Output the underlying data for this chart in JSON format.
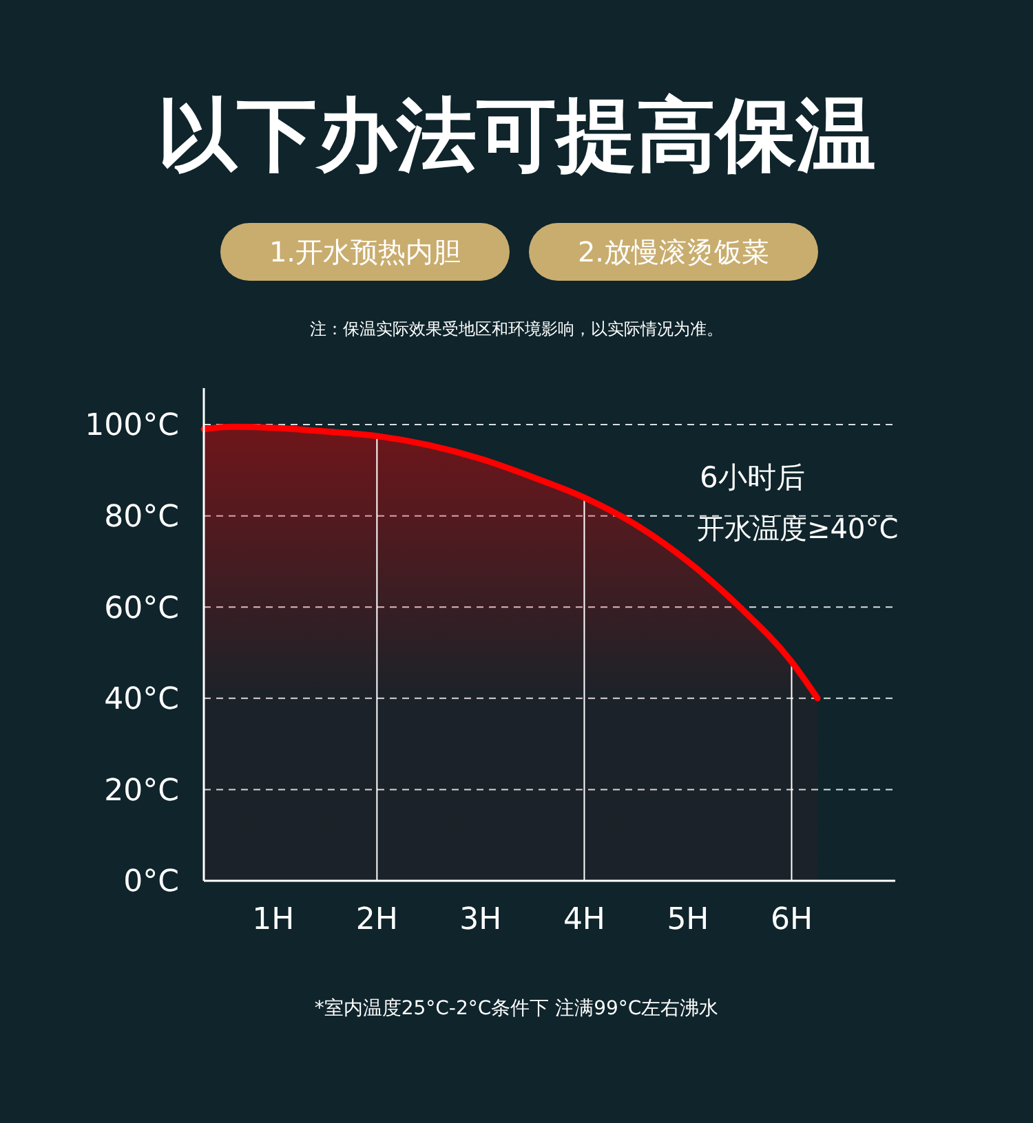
{
  "chart_data": {
    "type": "area",
    "title": "以下办法可提高保温",
    "annotations": [
      "1.开水预热内胆",
      "2.放慢滚烫饭菜",
      "注：保温实际效果受地区和环境影响，以实际情况为准。",
      "6小时后",
      "开水温度≥40°C",
      "*室内温度25°C-2°C条件下 注满99°C左右沸水"
    ],
    "x": [
      0.33,
      0.6,
      1,
      1.5,
      2,
      2.5,
      3,
      3.5,
      4,
      4.5,
      5,
      5.5,
      6,
      6.25
    ],
    "series": [
      {
        "color": "#ff0000",
        "values": [
          99,
          99.5,
          99.3,
          98.5,
          97.5,
          95.5,
          92.5,
          88.5,
          84,
          78,
          70,
          60,
          48,
          40
        ]
      }
    ],
    "xlim": [
      0.33,
      7
    ],
    "xticks": [
      {
        "value": 1,
        "label": "1H"
      },
      {
        "value": 2,
        "label": "2H"
      },
      {
        "value": 3,
        "label": "3H"
      },
      {
        "value": 4,
        "label": "4H"
      },
      {
        "value": 5,
        "label": "5H"
      },
      {
        "value": 6,
        "label": "6H"
      }
    ],
    "ylim": [
      0,
      108
    ],
    "yticks": [
      {
        "value": 0,
        "label": "0°C"
      },
      {
        "value": 20,
        "label": "20°C"
      },
      {
        "value": 40,
        "label": "40°C"
      },
      {
        "value": 60,
        "label": "60°C"
      },
      {
        "value": 80,
        "label": "80°C"
      },
      {
        "value": 100,
        "label": "100°C"
      }
    ],
    "ref_lines": [
      {
        "axis": "x",
        "value": 2
      },
      {
        "axis": "x",
        "value": 4
      },
      {
        "axis": "x",
        "value": 6
      }
    ],
    "grid": "y",
    "marker": "none",
    "line_style": "solid"
  }
}
